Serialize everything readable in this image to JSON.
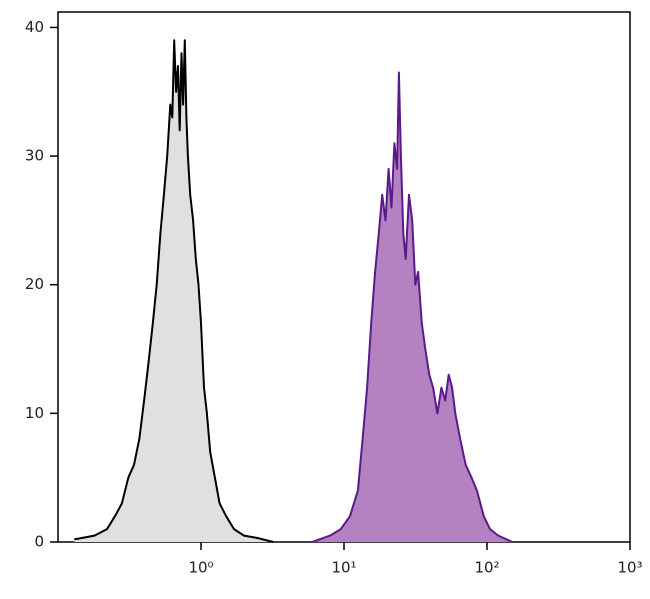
{
  "chart_data": {
    "type": "histogram-overlay",
    "xscale": "log",
    "xlim": [
      0.1,
      1000
    ],
    "ylim": [
      0,
      41.2
    ],
    "xticks": [
      {
        "value": 1,
        "label": "10⁰"
      },
      {
        "value": 10,
        "label": "10¹"
      },
      {
        "value": 100,
        "label": "10²"
      },
      {
        "value": 1000,
        "label": "10³"
      }
    ],
    "yticks": [
      0,
      10,
      20,
      30,
      40
    ],
    "series": [
      {
        "color": "#000000",
        "fill": "#e0e0e0",
        "x": [
          0.13,
          0.18,
          0.22,
          0.25,
          0.28,
          0.31,
          0.34,
          0.37,
          0.4,
          0.43,
          0.46,
          0.49,
          0.52,
          0.55,
          0.58,
          0.61,
          0.63,
          0.65,
          0.67,
          0.69,
          0.71,
          0.73,
          0.75,
          0.77,
          0.79,
          0.81,
          0.84,
          0.88,
          0.92,
          0.96,
          1.0,
          1.05,
          1.1,
          1.16,
          1.25,
          1.35,
          1.5,
          1.7,
          2.0,
          2.5,
          3.2
        ],
        "values": [
          0.2,
          0.5,
          1,
          2,
          3,
          5,
          6,
          8,
          11,
          14,
          17,
          20,
          24,
          27,
          30,
          34,
          33,
          39,
          35,
          37,
          32,
          38,
          34,
          39,
          33,
          30,
          27,
          25,
          22,
          20,
          17,
          12,
          10,
          7,
          5,
          3,
          2,
          1,
          0.5,
          0.3,
          0
        ]
      },
      {
        "color": "#5a1a8a",
        "fill": "#b482c0",
        "x": [
          6,
          8,
          9.5,
          11,
          12.5,
          13.5,
          14.5,
          15.5,
          16.5,
          17.5,
          18.5,
          19.5,
          20.5,
          21.5,
          22.5,
          23.5,
          24.2,
          25,
          26,
          27,
          28.5,
          30,
          31.5,
          33,
          35,
          37,
          39.5,
          42,
          45,
          48,
          51,
          54,
          57,
          60,
          65,
          71,
          78,
          85,
          95,
          105,
          120,
          150
        ],
        "values": [
          0,
          0.5,
          1,
          2,
          4,
          8,
          12,
          17,
          21,
          24,
          27,
          25,
          29,
          26,
          31,
          29,
          36.5,
          30,
          24,
          22,
          27,
          25,
          20,
          21,
          17,
          15,
          13,
          12,
          10,
          12,
          11,
          13,
          12,
          10,
          8,
          6,
          5,
          4,
          2,
          1,
          0.5,
          0
        ]
      }
    ]
  }
}
